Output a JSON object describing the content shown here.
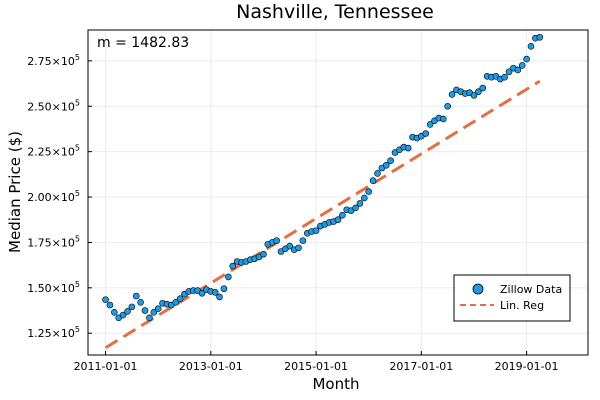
{
  "chart_data": {
    "type": "scatter",
    "title": "Nashville, Tennessee",
    "xlabel": "Month",
    "ylabel": "Median Price ($)",
    "annotation": "m = 1482.83",
    "x_start": "2011-01",
    "x_ticks": [
      "2011-01-01",
      "2013-01-01",
      "2015-01-01",
      "2017-01-01",
      "2019-01-01"
    ],
    "y_ticks": [
      {
        "value": 125000,
        "mantissa": "1.25",
        "exp": "5"
      },
      {
        "value": 150000,
        "mantissa": "1.50",
        "exp": "5"
      },
      {
        "value": 175000,
        "mantissa": "1.75",
        "exp": "5"
      },
      {
        "value": 200000,
        "mantissa": "2.00",
        "exp": "5"
      },
      {
        "value": 225000,
        "mantissa": "2.25",
        "exp": "5"
      },
      {
        "value": 250000,
        "mantissa": "2.50",
        "exp": "5"
      },
      {
        "value": 275000,
        "mantissa": "2.75",
        "exp": "5"
      }
    ],
    "ylim": [
      113000,
      292000
    ],
    "xlim": [
      "2010-09",
      "2020-03"
    ],
    "grid": true,
    "legend_position": "bottom-right",
    "colors": {
      "points": "#1f9be6",
      "line": "#e26f46"
    },
    "series": [
      {
        "name": "Zillow Data",
        "kind": "scatter",
        "values": [
          143500,
          140500,
          136500,
          133500,
          135000,
          137000,
          139500,
          145500,
          142000,
          137500,
          133500,
          136500,
          138500,
          141500,
          141000,
          140500,
          142000,
          144000,
          146500,
          148000,
          148500,
          148500,
          147000,
          149000,
          148000,
          147500,
          145000,
          149500,
          156000,
          162000,
          164500,
          164000,
          164500,
          165500,
          166000,
          167000,
          168500,
          174000,
          175000,
          176000,
          170000,
          171500,
          173000,
          171000,
          172000,
          176000,
          180000,
          181000,
          181500,
          184000,
          185000,
          186000,
          186500,
          187500,
          190000,
          193000,
          192500,
          194000,
          196500,
          199500,
          203000,
          209000,
          213000,
          216000,
          217500,
          220000,
          224500,
          226000,
          227500,
          227000,
          233000,
          232500,
          233500,
          235000,
          240000,
          242000,
          243500,
          243000,
          250000,
          256500,
          259000,
          258000,
          257000,
          257500,
          256000,
          258000,
          260000,
          266500,
          266000,
          266500,
          265000,
          266000,
          269000,
          271000,
          270000,
          272500,
          276000,
          283000,
          287500,
          288000
        ]
      },
      {
        "name": "Lin. Reg",
        "kind": "line",
        "start": 117000,
        "slope": 1482.83
      }
    ]
  }
}
